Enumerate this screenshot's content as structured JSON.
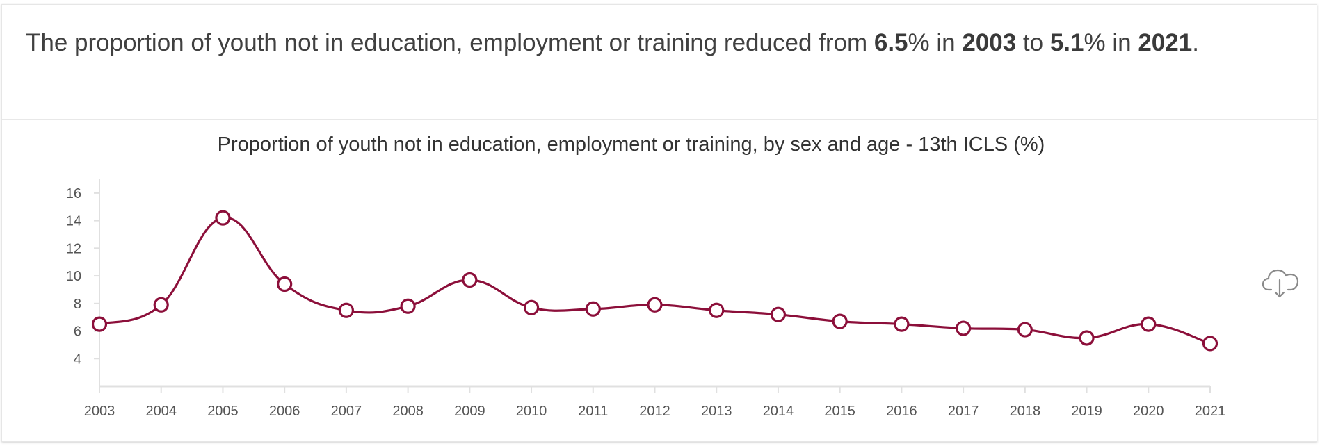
{
  "headline": {
    "part1": "The proportion of youth not in education, employment or training reduced from ",
    "value_start": "6.5",
    "part2": "% in ",
    "year_start": "2003",
    "part3": " to ",
    "value_end": "5.1",
    "part4": "% in ",
    "year_end": "2021",
    "part5": "."
  },
  "download": {
    "icon": "cloud-download-icon"
  },
  "chart_data": {
    "type": "line",
    "title": "Proportion of youth not in education, employment or training, by sex and age - 13th ICLS (%)",
    "xlabel": "",
    "ylabel": "",
    "x": [
      "2003",
      "2004",
      "2005",
      "2006",
      "2007",
      "2008",
      "2009",
      "2010",
      "2011",
      "2012",
      "2013",
      "2014",
      "2015",
      "2016",
      "2017",
      "2018",
      "2019",
      "2020",
      "2021"
    ],
    "series": [
      {
        "values": [
          6.5,
          7.9,
          14.2,
          9.4,
          7.5,
          7.8,
          9.7,
          7.7,
          7.6,
          7.9,
          7.5,
          7.2,
          6.7,
          6.5,
          6.2,
          6.1,
          5.5,
          6.5,
          5.1
        ]
      }
    ],
    "yticks": [
      4,
      6,
      8,
      10,
      12,
      14,
      16
    ],
    "ylim": [
      2,
      17
    ],
    "grid": false,
    "legend": "none",
    "color": "#8c0f3a"
  }
}
